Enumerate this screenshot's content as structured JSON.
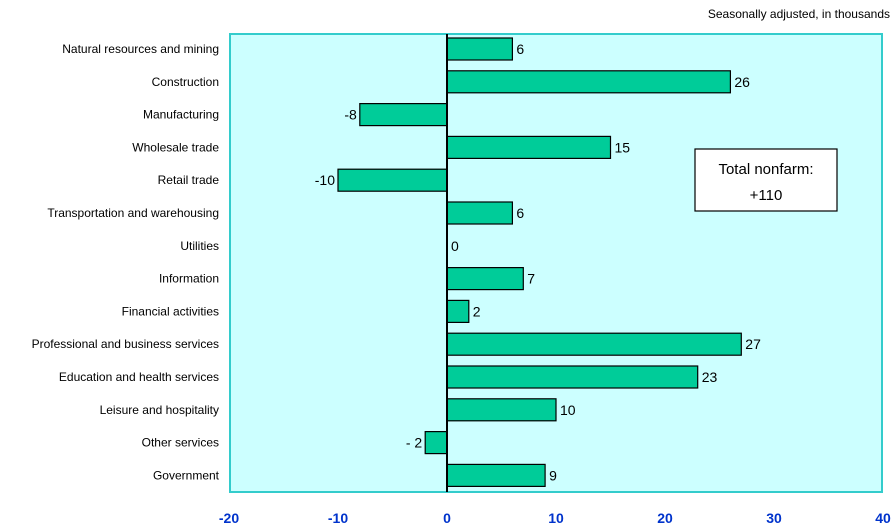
{
  "chart_data": {
    "type": "bar",
    "orientation": "horizontal",
    "subtitle": "Seasonally adjusted, in thousands",
    "categories": [
      "Natural resources and mining",
      "Construction",
      "Manufacturing",
      "Wholesale trade",
      "Retail trade",
      "Transportation and warehousing",
      "Utilities",
      "Information",
      "Financial activities",
      "Professional and business services",
      "Education and health services",
      "Leisure and hospitality",
      "Other services",
      "Government"
    ],
    "values": [
      6,
      26,
      -8,
      15,
      -10,
      6,
      0,
      7,
      2,
      27,
      23,
      10,
      -2,
      9
    ],
    "value_labels": [
      "6",
      "26",
      "-8",
      "15",
      "-10",
      "6",
      "0",
      "7",
      "2",
      "27",
      "23",
      "10",
      "- 2",
      "9"
    ],
    "xlim": [
      -20,
      40
    ],
    "xticks": [
      "-20",
      "-10",
      "0",
      "10",
      "20",
      "30",
      "40"
    ],
    "xlabel": "",
    "ylabel": "",
    "annotation": {
      "line1": "Total nonfarm:",
      "line2": "+110"
    },
    "grid": false,
    "colors": {
      "bar_fill": "#00CC99",
      "plot_background": "#CCFFFF",
      "plot_border": "#33CCCC",
      "tick_label": "#0033CC"
    }
  }
}
